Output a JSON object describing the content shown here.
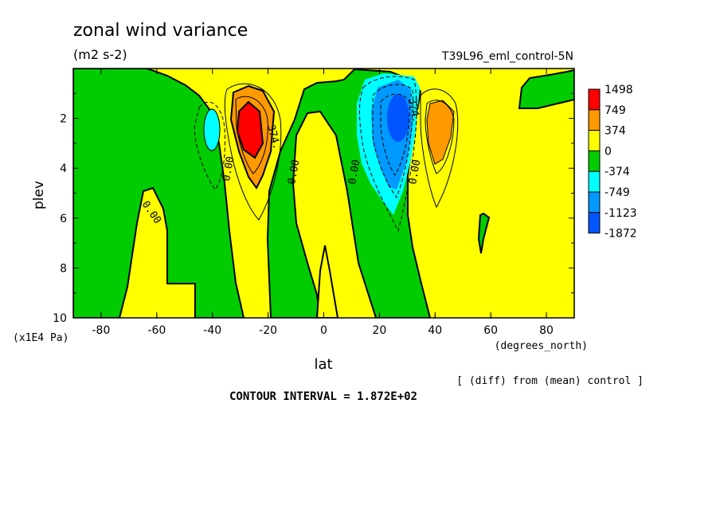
{
  "chart_data": {
    "type": "heatmap",
    "subtype": "filled-contour",
    "title": "zonal wind variance",
    "units": "(m2 s-2)",
    "run_label": "T39L96_eml_control-5N",
    "xlabel": "lat",
    "x_units": "(degrees_north)",
    "ylabel": "plev",
    "y_units": "(x1E4 Pa)",
    "xlim": [
      -90,
      90
    ],
    "ylim": [
      10,
      0
    ],
    "x_ticks": [
      -80,
      -60,
      -40,
      -20,
      0,
      20,
      40,
      60,
      80
    ],
    "y_ticks": [
      2,
      4,
      6,
      8,
      10
    ],
    "note": "[ (diff) from (mean) control ]",
    "contour_interval_text": "CONTOUR INTERVAL = 1.872E+02",
    "contour_labels": [
      "0.00",
      "374.",
      "-374."
    ],
    "legend": {
      "placement": "right",
      "levels": [
        "1498",
        "749",
        "374",
        "0",
        "-374",
        "-749",
        "-1123",
        "-1872"
      ],
      "colors": [
        "#ff0000",
        "#ff9900",
        "#ffff00",
        "#00cc00",
        "#00ffff",
        "#0099ff",
        "#0055ff"
      ]
    },
    "features": [
      {
        "name": "positive maximum",
        "lat": -27,
        "plev": 2.6,
        "value": 1498
      },
      {
        "name": "negative minimum",
        "lat": 26,
        "plev": 2.3,
        "value": -1872
      },
      {
        "name": "positive secondary maximum",
        "lat": 41,
        "plev": 2.6,
        "value": 749
      },
      {
        "name": "negative secondary minimum",
        "lat": -41,
        "plev": 2.5,
        "value": -749
      }
    ]
  },
  "colors": {
    "red": "#ff0000",
    "orange": "#ff9900",
    "yellow": "#ffff00",
    "green": "#00cc00",
    "cyan": "#00ffff",
    "blue_light": "#0099ff",
    "blue_dark": "#0055ff"
  }
}
